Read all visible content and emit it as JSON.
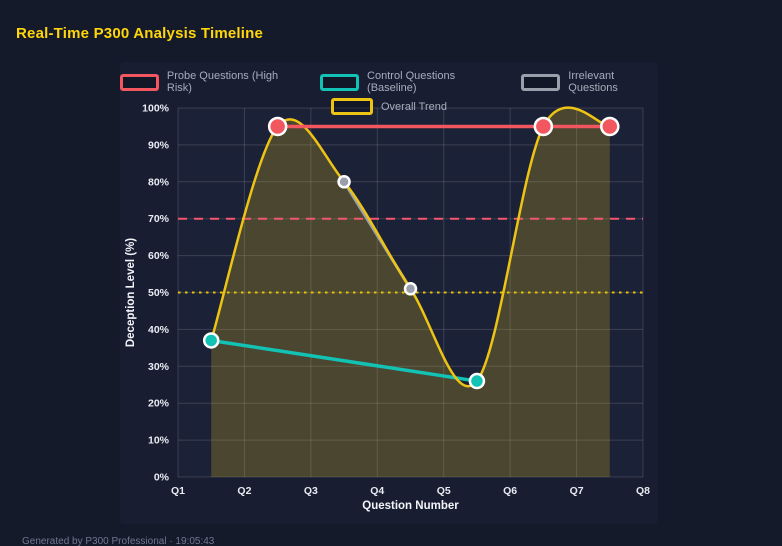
{
  "page": {
    "title": "Real-Time P300 Analysis Timeline",
    "footer": "Generated by P300 Professional · 19:05:43"
  },
  "colors": {
    "page_bg": "#151a2b",
    "panel_bg": "#181d31",
    "plot_bg": "#1b2136",
    "grid": "rgba(255,255,255,0.14)",
    "tick_text": "#e9ebf2",
    "axis_title_text": "#f2f4f8",
    "legend_text": "#a7adbc",
    "title_text": "#ffd60a",
    "marker_border": "#ffffff"
  },
  "chart_data": {
    "type": "line",
    "title": "Real-Time P300 Analysis Timeline",
    "xlabel": "Question Number",
    "ylabel": "Deception Level (%)",
    "x_ticks": [
      "Q1",
      "Q2",
      "Q3",
      "Q4",
      "Q5",
      "Q6",
      "Q7",
      "Q8"
    ],
    "x_tick_values": [
      1,
      2,
      3,
      4,
      5,
      6,
      7,
      8
    ],
    "x_range": [
      1,
      8
    ],
    "y_ticks": [
      "0%",
      "10%",
      "20%",
      "30%",
      "40%",
      "50%",
      "60%",
      "70%",
      "80%",
      "90%",
      "100%"
    ],
    "y_tick_values": [
      0,
      10,
      20,
      30,
      40,
      50,
      60,
      70,
      80,
      90,
      100
    ],
    "ylim": [
      0,
      100
    ],
    "grid": true,
    "legend_position": "top-center",
    "legend_rows": [
      3,
      1
    ],
    "series": [
      {
        "name": "Probe Questions (High Risk)",
        "color": "#f2575f",
        "x": [
          2.5,
          6.5,
          7.5
        ],
        "values": [
          95,
          95,
          95
        ],
        "line_width": 3.5,
        "marker_radius": 8.5,
        "smooth": false
      },
      {
        "name": "Control Questions (Baseline)",
        "color": "#12c2b5",
        "x": [
          1.5,
          5.5
        ],
        "values": [
          37,
          26
        ],
        "line_width": 3.5,
        "marker_radius": 7,
        "smooth": false
      },
      {
        "name": "Irrelevant Questions",
        "color": "#99a0ab",
        "x": [
          3.5,
          4.5
        ],
        "values": [
          80,
          51
        ],
        "line_width": 3,
        "marker_radius": 5.5,
        "smooth": false
      },
      {
        "name": "Overall Trend",
        "color": "#eec414",
        "x": [
          1.5,
          2.5,
          3.5,
          4.5,
          5.5,
          6.5,
          7.5
        ],
        "values": [
          37,
          95,
          80,
          51,
          26,
          95,
          95
        ],
        "line_width": 2.5,
        "marker_radius": 0,
        "smooth": true,
        "fill": "rgba(224,190,30,0.24)"
      }
    ],
    "thresholds": [
      {
        "value": 70,
        "color": "#f4566b",
        "style": "dashed"
      },
      {
        "value": 50,
        "color": "#e9c400",
        "style": "dotted"
      }
    ]
  }
}
